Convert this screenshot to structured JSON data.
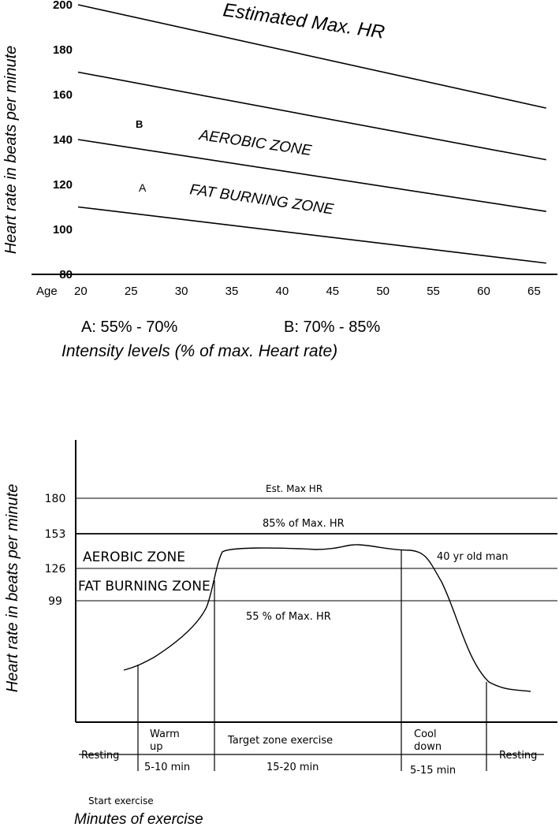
{
  "chart_data": [
    {
      "type": "line",
      "title": "",
      "ylabel": "Heart rate in beats per minute",
      "xlabel_prefix": "Age",
      "x_ticks": [
        20,
        25,
        30,
        35,
        40,
        45,
        50,
        55,
        60,
        65
      ],
      "y_ticks": [
        80,
        100,
        120,
        140,
        160,
        180,
        200
      ],
      "xlim": [
        20,
        66
      ],
      "ylim": [
        80,
        200
      ],
      "series": [
        {
          "name": "Estimated Max. HR",
          "x": [
            20,
            66
          ],
          "y": [
            200,
            154
          ]
        },
        {
          "name": "85% of max",
          "x": [
            20,
            66
          ],
          "y": [
            170,
            131
          ]
        },
        {
          "name": "70% of max",
          "x": [
            20,
            66
          ],
          "y": [
            140,
            108
          ]
        },
        {
          "name": "55% of max",
          "x": [
            20,
            66
          ],
          "y": [
            110,
            85
          ]
        }
      ],
      "annotations": {
        "max_label": "Estimated Max. HR",
        "aerobic": "AEROBIC ZONE",
        "fat": "FAT BURNING ZONE",
        "marker_b": "B",
        "marker_a": "A"
      },
      "legend": {
        "a": "A:  55% - 70%",
        "b": "B:  70% - 85%",
        "caption": "Intensity levels (% of max. Heart rate)"
      }
    },
    {
      "type": "line",
      "ylabel": "Heart rate in beats per minute",
      "y_ticks": [
        "180",
        "153",
        "126",
        "99"
      ],
      "reference_lines": [
        {
          "value": 180,
          "label": "Est. Max HR"
        },
        {
          "value": 153,
          "label": "85% of Max. HR"
        },
        {
          "value": 126,
          "label": ""
        },
        {
          "value": 99,
          "label": "55 % of Max. HR"
        }
      ],
      "zone_labels": {
        "aerobic": "AEROBIC ZONE",
        "fat": "FAT BURNING ZONE",
        "person": "40 yr old man"
      },
      "phases": [
        {
          "name": "Resting",
          "duration": ""
        },
        {
          "name": "Warm up",
          "duration": "5-10 min"
        },
        {
          "name": "Target zone exercise",
          "duration": "15-20 min"
        },
        {
          "name": "Cool down",
          "duration": "5-15 min"
        },
        {
          "name": "Resting",
          "duration": ""
        }
      ],
      "start_label": "Start exercise",
      "xlabel": "Minutes of exercise"
    }
  ]
}
